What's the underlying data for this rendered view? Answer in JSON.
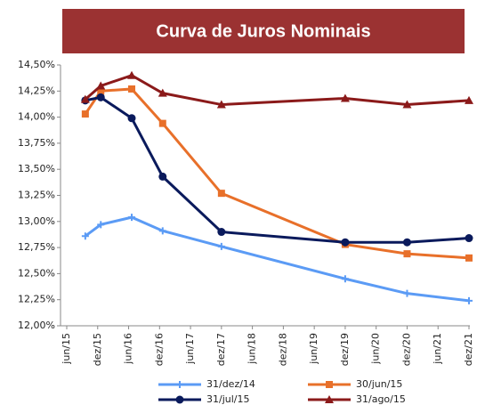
{
  "chart_data": {
    "type": "line",
    "title": "Curva de Juros Nominais",
    "x": [
      2015.8,
      2016.05,
      2016.55,
      2017.05,
      2018.0,
      2020.0,
      2021.0,
      2022.0
    ],
    "xlim": [
      2015.5,
      2022.0
    ],
    "xticks": [
      {
        "value": 2015.5,
        "label": "jun/15"
      },
      {
        "value": 2016.0,
        "label": "dez/15"
      },
      {
        "value": 2016.5,
        "label": "jun/16"
      },
      {
        "value": 2017.0,
        "label": "dez/16"
      },
      {
        "value": 2017.5,
        "label": "jun/17"
      },
      {
        "value": 2018.0,
        "label": "dez/17"
      },
      {
        "value": 2018.5,
        "label": "jun/18"
      },
      {
        "value": 2019.0,
        "label": "dez/18"
      },
      {
        "value": 2019.5,
        "label": "jun/19"
      },
      {
        "value": 2020.0,
        "label": "dez/19"
      },
      {
        "value": 2020.5,
        "label": "jun/20"
      },
      {
        "value": 2021.0,
        "label": "dez/20"
      },
      {
        "value": 2021.5,
        "label": "jun/21"
      },
      {
        "value": 2022.0,
        "label": "dez/21"
      }
    ],
    "ylim": [
      12,
      14.5
    ],
    "yticks": [
      {
        "value": 12,
        "label": "12,00%"
      },
      {
        "value": 12.25,
        "label": "12,25%"
      },
      {
        "value": 12.5,
        "label": "12,50%"
      },
      {
        "value": 12.75,
        "label": "12,75%"
      },
      {
        "value": 13,
        "label": "13,00%"
      },
      {
        "value": 13.25,
        "label": "13,25%"
      },
      {
        "value": 13.5,
        "label": "13,50%"
      },
      {
        "value": 13.75,
        "label": "13,75%"
      },
      {
        "value": 14,
        "label": "14,00%"
      },
      {
        "value": 14.25,
        "label": "14,25%"
      },
      {
        "value": 14.5,
        "label": "14,50%"
      }
    ],
    "series": [
      {
        "name": "31/dez/14",
        "color": "#5b9bf5",
        "marker": "plus",
        "values": [
          12.86,
          12.97,
          13.04,
          12.91,
          12.76,
          12.45,
          12.31,
          12.24
        ]
      },
      {
        "name": "30/jun/15",
        "color": "#e8702a",
        "marker": "square",
        "values": [
          14.03,
          14.25,
          14.27,
          13.94,
          13.27,
          12.78,
          12.69,
          12.65
        ]
      },
      {
        "name": "31/jul/15",
        "color": "#0a1a5c",
        "marker": "circle",
        "values": [
          14.16,
          14.19,
          13.99,
          13.43,
          12.9,
          12.8,
          12.8,
          12.84
        ]
      },
      {
        "name": "31/ago/15",
        "color": "#8b1a1a",
        "marker": "triangle",
        "values": [
          14.17,
          14.3,
          14.4,
          14.23,
          14.12,
          14.18,
          14.12,
          14.16
        ]
      }
    ]
  }
}
